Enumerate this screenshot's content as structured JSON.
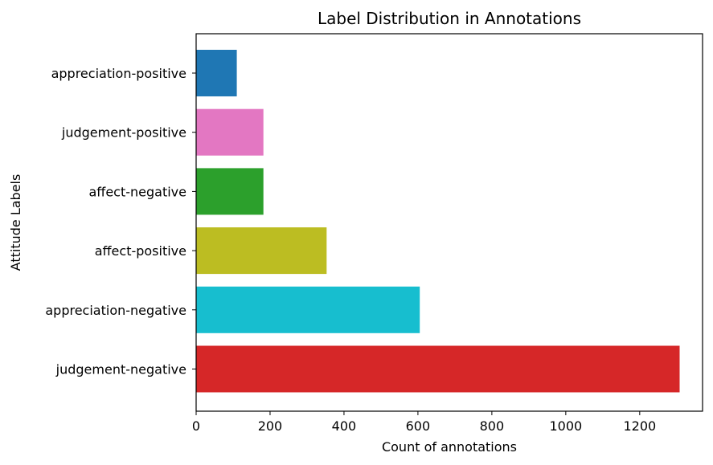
{
  "chart_data": {
    "type": "bar",
    "orientation": "horizontal",
    "title": "Label Distribution in Annotations",
    "xlabel": "Count of annotations",
    "ylabel": "Attitude Labels",
    "xlim": [
      0,
      1370
    ],
    "xticks": [
      0,
      200,
      400,
      600,
      800,
      1000,
      1200
    ],
    "grid": false,
    "categories": [
      "appreciation-positive",
      "judgement-positive",
      "affect-negative",
      "affect-positive",
      "appreciation-negative",
      "judgement-negative"
    ],
    "values": [
      110,
      182,
      182,
      353,
      605,
      1308
    ],
    "colors": [
      "#1f77b4",
      "#e377c2",
      "#2ca02c",
      "#bcbd22",
      "#17becf",
      "#d62728"
    ]
  }
}
